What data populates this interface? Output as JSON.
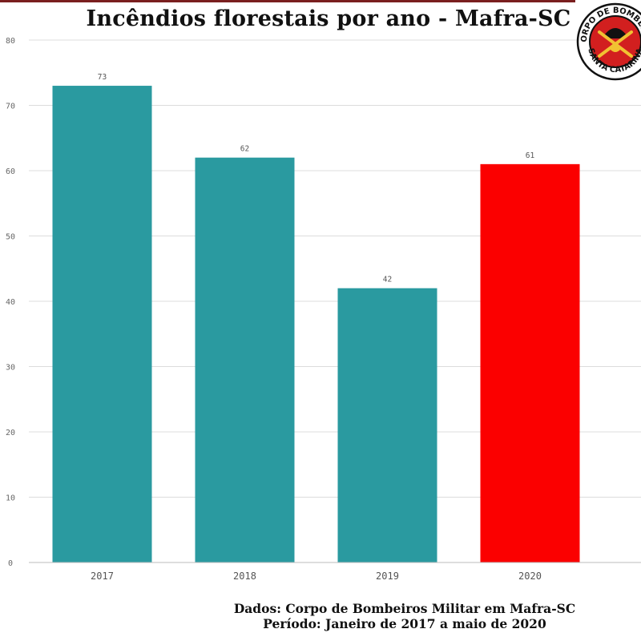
{
  "title": "Incêndios florestais por ano - Mafra-SC",
  "footer": {
    "source": "Dados: Corpo de Bombeiros Militar em Mafra-SC",
    "period": "Período: Janeiro de 2017 a maio de 2020"
  },
  "logo": {
    "text_top": "CORPO DE BOMBEIROS",
    "text_bottom": "SANTA CATARINA"
  },
  "colors": {
    "bar": "#2a9aa0",
    "highlight": "#fb0000",
    "grid": "#dcdcdc",
    "axis_text": "#666666",
    "logo_red": "#d21f1f"
  },
  "chart_data": {
    "type": "bar",
    "title": "Incêndios florestais por ano - Mafra-SC",
    "xlabel": "",
    "ylabel": "",
    "categories": [
      "2017",
      "2018",
      "2019",
      "2020"
    ],
    "values": [
      73,
      62,
      42,
      61
    ],
    "data_labels": [
      "73",
      "62",
      "42",
      "61"
    ],
    "highlight_category": "2020",
    "ylim": [
      0,
      80
    ],
    "yticks": [
      "0",
      "10",
      "20",
      "30",
      "40",
      "50",
      "60",
      "70",
      "80"
    ],
    "grid": true,
    "legend": "none"
  }
}
